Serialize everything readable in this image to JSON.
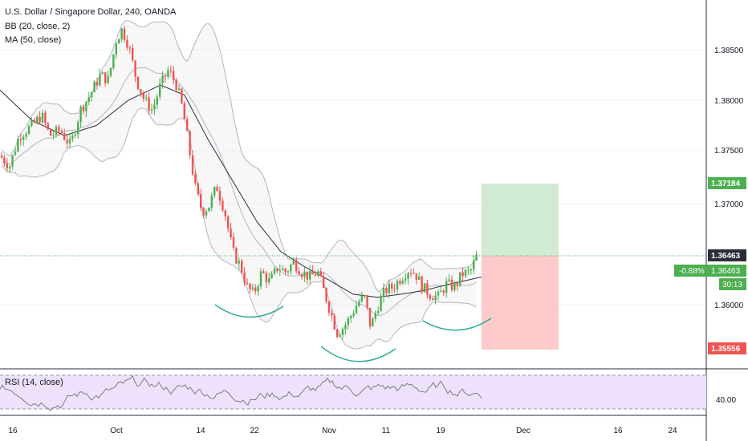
{
  "header": {
    "title": "U.S. Dollar / Singapore Dollar, 240, OANDA",
    "bb_label": "BB (20, close, 2)",
    "ma_label": "MA (50, close)"
  },
  "rsi": {
    "label": "RSI (14, close)"
  },
  "price_tags": {
    "target": "1.37184",
    "last": "1.36463",
    "change": "-0.88%",
    "countdown": "30:13",
    "stop": "1.35556"
  },
  "colors": {
    "up": "#4caf50",
    "down": "#ef5350",
    "ma": "#2a2e39",
    "bb": "#b2b5be",
    "target_zone": "#d1ebd2",
    "stop_zone": "#fdcaca",
    "rsi_band": "#ede1fb",
    "arcs": "#26a69a"
  },
  "chart_data": {
    "type": "candlestick",
    "title": "U.S. Dollar / Singapore Dollar, 240, OANDA",
    "indicators": [
      "BB (20, close, 2)",
      "MA (50, close)",
      "RSI (14, close)"
    ],
    "x_tick_labels": [
      "16",
      "Oct",
      "14",
      "22",
      "Nov",
      "11",
      "19",
      "Dec",
      "16",
      "24"
    ],
    "y_tick_labels": [
      "1.38500",
      "1.38000",
      "1.37500",
      "1.37000",
      "1.36000"
    ],
    "ylim": [
      1.3549,
      1.3893
    ],
    "close_path": [
      [
        0,
        1.3745
      ],
      [
        12,
        1.3735
      ],
      [
        24,
        1.3765
      ],
      [
        40,
        1.3775
      ],
      [
        52,
        1.3785
      ],
      [
        62,
        1.3765
      ],
      [
        75,
        1.377
      ],
      [
        88,
        1.3755
      ],
      [
        100,
        1.379
      ],
      [
        112,
        1.3805
      ],
      [
        125,
        1.3825
      ],
      [
        135,
        1.382
      ],
      [
        145,
        1.386
      ],
      [
        152,
        1.387
      ],
      [
        160,
        1.3855
      ],
      [
        170,
        1.382
      ],
      [
        180,
        1.38
      ],
      [
        190,
        1.379
      ],
      [
        200,
        1.3815
      ],
      [
        210,
        1.383
      ],
      [
        220,
        1.3815
      ],
      [
        228,
        1.379
      ],
      [
        236,
        1.375
      ],
      [
        244,
        1.371
      ],
      [
        252,
        1.369
      ],
      [
        260,
        1.3695
      ],
      [
        270,
        1.3715
      ],
      [
        280,
        1.369
      ],
      [
        290,
        1.365
      ],
      [
        300,
        1.3635
      ],
      [
        308,
        1.3615
      ],
      [
        316,
        1.3608
      ],
      [
        326,
        1.363
      ],
      [
        336,
        1.362
      ],
      [
        346,
        1.3635
      ],
      [
        356,
        1.363
      ],
      [
        366,
        1.364
      ],
      [
        376,
        1.363
      ],
      [
        386,
        1.3625
      ],
      [
        396,
        1.363
      ],
      [
        404,
        1.361
      ],
      [
        412,
        1.359
      ],
      [
        420,
        1.357
      ],
      [
        428,
        1.3575
      ],
      [
        436,
        1.3585
      ],
      [
        446,
        1.36
      ],
      [
        454,
        1.3605
      ],
      [
        462,
        1.3575
      ],
      [
        470,
        1.3595
      ],
      [
        480,
        1.3612
      ],
      [
        490,
        1.3615
      ],
      [
        500,
        1.3625
      ],
      [
        510,
        1.3633
      ],
      [
        518,
        1.3628
      ],
      [
        526,
        1.3615
      ],
      [
        536,
        1.3608
      ],
      [
        546,
        1.3605
      ],
      [
        556,
        1.3618
      ],
      [
        566,
        1.3615
      ],
      [
        576,
        1.3628
      ],
      [
        586,
        1.363
      ],
      [
        594,
        1.3646
      ]
    ],
    "moving_average_path": [
      [
        0,
        1.381
      ],
      [
        40,
        1.378
      ],
      [
        80,
        1.3765
      ],
      [
        120,
        1.3775
      ],
      [
        160,
        1.38
      ],
      [
        200,
        1.3815
      ],
      [
        230,
        1.3805
      ],
      [
        260,
        1.376
      ],
      [
        290,
        1.372
      ],
      [
        320,
        1.368
      ],
      [
        350,
        1.365
      ],
      [
        380,
        1.3635
      ],
      [
        410,
        1.3622
      ],
      [
        440,
        1.3608
      ],
      [
        470,
        1.3605
      ],
      [
        500,
        1.3608
      ],
      [
        530,
        1.3612
      ],
      [
        560,
        1.3618
      ],
      [
        600,
        1.3625
      ]
    ],
    "position": {
      "entry": 1.36463,
      "target": 1.37184,
      "stop": 1.35556
    },
    "rsi": {
      "upper_band": 70,
      "lower_band": 30,
      "tick_label": "40.00"
    }
  }
}
